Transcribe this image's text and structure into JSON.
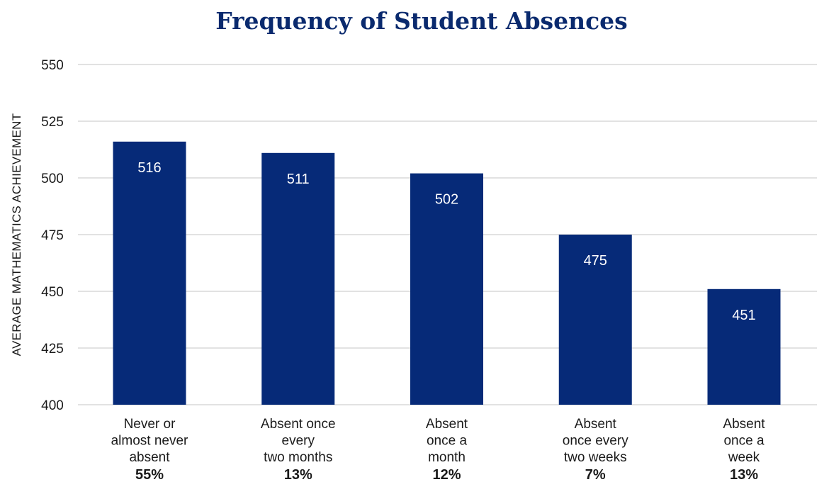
{
  "chart_data": {
    "type": "bar",
    "title": "Frequency of Student Absences",
    "xlabel": "",
    "ylabel": "AVERAGE MATHEMATICS ACHIEVEMENT",
    "ylim": [
      400,
      550
    ],
    "yticks": [
      "400",
      "425",
      "450",
      "475",
      "500",
      "525",
      "550"
    ],
    "grid": true,
    "bar_color": "#062a78",
    "categories": [
      {
        "lines": [
          "Never or",
          "almost never",
          "absent"
        ],
        "share": "55%"
      },
      {
        "lines": [
          "Absent once",
          "every",
          "two months"
        ],
        "share": "13%"
      },
      {
        "lines": [
          "Absent",
          "once a",
          "month"
        ],
        "share": "12%"
      },
      {
        "lines": [
          "Absent",
          "once every",
          "two weeks"
        ],
        "share": "7%"
      },
      {
        "lines": [
          "Absent",
          "once a",
          "week"
        ],
        "share": "13%"
      }
    ],
    "values": [
      516,
      511,
      502,
      475,
      451
    ]
  }
}
